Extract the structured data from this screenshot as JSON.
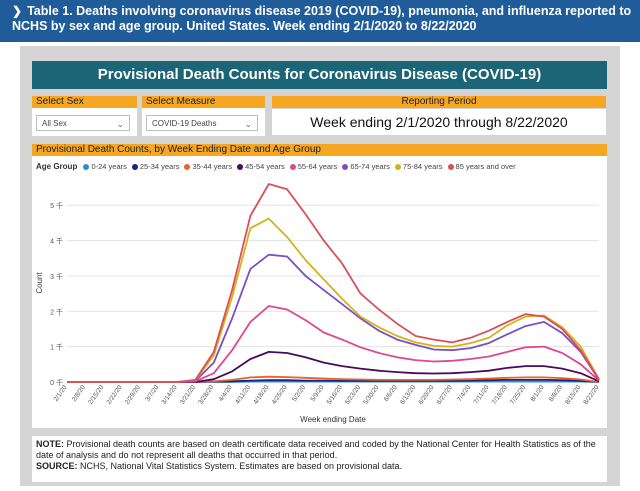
{
  "top_banner": {
    "text": "Table 1. Deaths involving coronavirus disease 2019 (COVID-19), pneumonia, and influenza reported to NCHS by sex and age group. United States. Week ending 2/1/2020 to 8/22/2020"
  },
  "dashboard": {
    "title": "Provisional Death Counts for Coronavirus Disease (COVID-19)",
    "select_sex": {
      "label": "Select Sex",
      "value": "All Sex"
    },
    "select_measure": {
      "label": "Select Measure",
      "value": "COVID-19 Deaths"
    },
    "reporting_period": {
      "label": "Reporting Period",
      "value": "Week ending 2/1/2020 through 8/22/2020"
    }
  },
  "note": {
    "note_label": "NOTE:",
    "note_text": " Provisional death counts are based on death certificate data received and coded by the National Center for Health Statistics as of the date of analysis and do not represent all deaths that occurred in that period.",
    "source_label": "SOURCE:",
    "source_text": " NCHS, National Vital Statistics System. Estimates are based on provisional data."
  },
  "chart_data": {
    "type": "line",
    "title": "Provisional Death Counts, by Week Ending Date and Age Group",
    "legend_title": "Age Group",
    "xlabel": "Week ending Date",
    "ylabel": "Count",
    "ylim": [
      0,
      5.6
    ],
    "y_ticks": [
      0,
      1,
      2,
      3,
      4,
      5
    ],
    "y_tick_labels": [
      "0 千",
      "1 千",
      "2 千",
      "3 千",
      "4 千",
      "5 千"
    ],
    "x": [
      "2/1/20",
      "2/8/20",
      "2/15/20",
      "2/22/20",
      "2/29/20",
      "3/7/20",
      "3/14/20",
      "3/21/20",
      "3/28/20",
      "4/4/20",
      "4/11/20",
      "4/18/20",
      "4/25/20",
      "5/2/20",
      "5/9/20",
      "5/16/20",
      "5/23/20",
      "5/30/20",
      "6/6/20",
      "6/13/20",
      "6/20/20",
      "6/27/20",
      "7/4/20",
      "7/11/20",
      "7/18/20",
      "7/25/20",
      "8/1/20",
      "8/8/20",
      "8/15/20",
      "8/22/20"
    ],
    "x_tick_labels": [
      "2/1/20",
      "2/8/20",
      "2/15/20",
      "2/22/20",
      "2/29/20",
      "3/7/20",
      "3/14/20",
      "3/21/20",
      "3/28/20",
      "4/4/20",
      "4/11/20",
      "4/18/20",
      "4/25/20",
      "5/2/20",
      "5/9/20",
      "5/16/20",
      "5/23/20",
      "5/30/20",
      "6/6/20",
      "6/13/20",
      "6/20/20",
      "6/27/20",
      "7/4/20",
      "7/11/20",
      "7/18/20",
      "7/25/20",
      "8/1/20",
      "8/8/20",
      "8/15/20",
      "8/22/20"
    ],
    "series": [
      {
        "name": "0-24 years",
        "color": "#2a8fd6",
        "values": [
          0,
          0,
          0,
          0,
          0,
          0,
          0,
          0,
          0,
          0,
          0.01,
          0.01,
          0.01,
          0.01,
          0.01,
          0.01,
          0.01,
          0.01,
          0.01,
          0.01,
          0.01,
          0.01,
          0.01,
          0.01,
          0.01,
          0.01,
          0.01,
          0.01,
          0.01,
          0
        ]
      },
      {
        "name": "25-34 years",
        "color": "#1a237e",
        "values": [
          0,
          0,
          0,
          0,
          0,
          0,
          0,
          0,
          0.01,
          0.02,
          0.04,
          0.05,
          0.05,
          0.04,
          0.04,
          0.03,
          0.03,
          0.03,
          0.03,
          0.03,
          0.03,
          0.03,
          0.04,
          0.05,
          0.06,
          0.06,
          0.06,
          0.05,
          0.03,
          0
        ]
      },
      {
        "name": "35-44 years",
        "color": "#e8622c",
        "values": [
          0,
          0,
          0,
          0,
          0,
          0,
          0,
          0,
          0.02,
          0.06,
          0.13,
          0.15,
          0.14,
          0.12,
          0.1,
          0.08,
          0.07,
          0.06,
          0.06,
          0.06,
          0.06,
          0.07,
          0.08,
          0.1,
          0.12,
          0.13,
          0.13,
          0.11,
          0.07,
          0
        ]
      },
      {
        "name": "45-54 years",
        "color": "#4a0a5c",
        "values": [
          0,
          0,
          0,
          0,
          0,
          0,
          0,
          0,
          0.08,
          0.3,
          0.65,
          0.85,
          0.82,
          0.7,
          0.55,
          0.45,
          0.38,
          0.32,
          0.28,
          0.25,
          0.24,
          0.25,
          0.28,
          0.32,
          0.4,
          0.45,
          0.45,
          0.38,
          0.25,
          0.02
        ]
      },
      {
        "name": "55-64 years",
        "color": "#e0478f",
        "values": [
          0,
          0,
          0,
          0,
          0,
          0,
          0,
          0.02,
          0.25,
          0.9,
          1.7,
          2.15,
          2.05,
          1.75,
          1.4,
          1.2,
          0.98,
          0.82,
          0.7,
          0.62,
          0.58,
          0.6,
          0.65,
          0.72,
          0.85,
          0.98,
          1.0,
          0.82,
          0.5,
          0.04
        ]
      },
      {
        "name": "65-74 years",
        "color": "#7b4fc2",
        "values": [
          0,
          0,
          0,
          0,
          0,
          0,
          0,
          0.03,
          0.55,
          1.8,
          3.2,
          3.6,
          3.55,
          3.0,
          2.6,
          2.2,
          1.8,
          1.45,
          1.2,
          1.05,
          0.92,
          0.9,
          0.96,
          1.1,
          1.35,
          1.58,
          1.7,
          1.38,
          0.85,
          0.06
        ]
      },
      {
        "name": "75-84 years",
        "color": "#d6b21a",
        "values": [
          0,
          0,
          0,
          0,
          0,
          0,
          0,
          0.05,
          0.75,
          2.4,
          4.35,
          4.62,
          4.1,
          3.45,
          2.9,
          2.35,
          1.85,
          1.55,
          1.3,
          1.12,
          1.02,
          1.0,
          1.1,
          1.25,
          1.6,
          1.85,
          1.88,
          1.55,
          1.0,
          0.08
        ]
      },
      {
        "name": "85 years and over",
        "color": "#d94f5a",
        "values": [
          0,
          0,
          0,
          0,
          0,
          0,
          0,
          0.06,
          0.85,
          2.6,
          4.7,
          5.6,
          5.45,
          4.75,
          4.0,
          3.35,
          2.5,
          2.05,
          1.65,
          1.3,
          1.2,
          1.12,
          1.25,
          1.45,
          1.7,
          1.92,
          1.85,
          1.5,
          0.9,
          0.07
        ]
      }
    ]
  }
}
